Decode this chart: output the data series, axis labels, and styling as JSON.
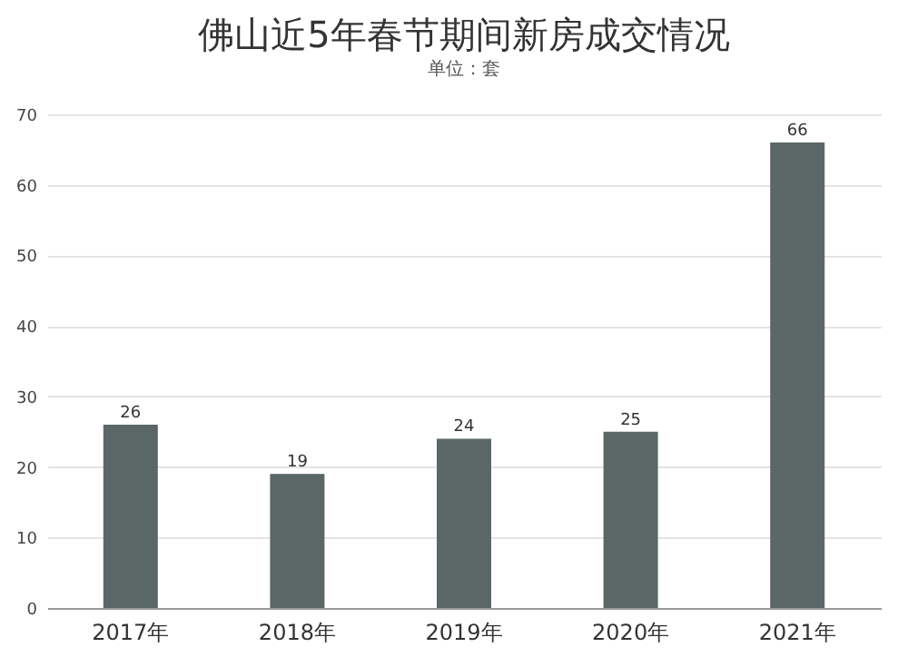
{
  "chart_data": {
    "type": "bar",
    "title": "佛山近5年春节期间新房成交情况",
    "subtitle": "单位：套",
    "categories": [
      "2017年",
      "2018年",
      "2019年",
      "2020年",
      "2021年"
    ],
    "values": [
      26,
      19,
      24,
      25,
      66
    ],
    "color": "#5b6766",
    "ylim": [
      0,
      70
    ],
    "yticks": [
      0,
      10,
      20,
      30,
      40,
      50,
      60,
      70
    ],
    "grid": "y",
    "data_labels": true
  }
}
